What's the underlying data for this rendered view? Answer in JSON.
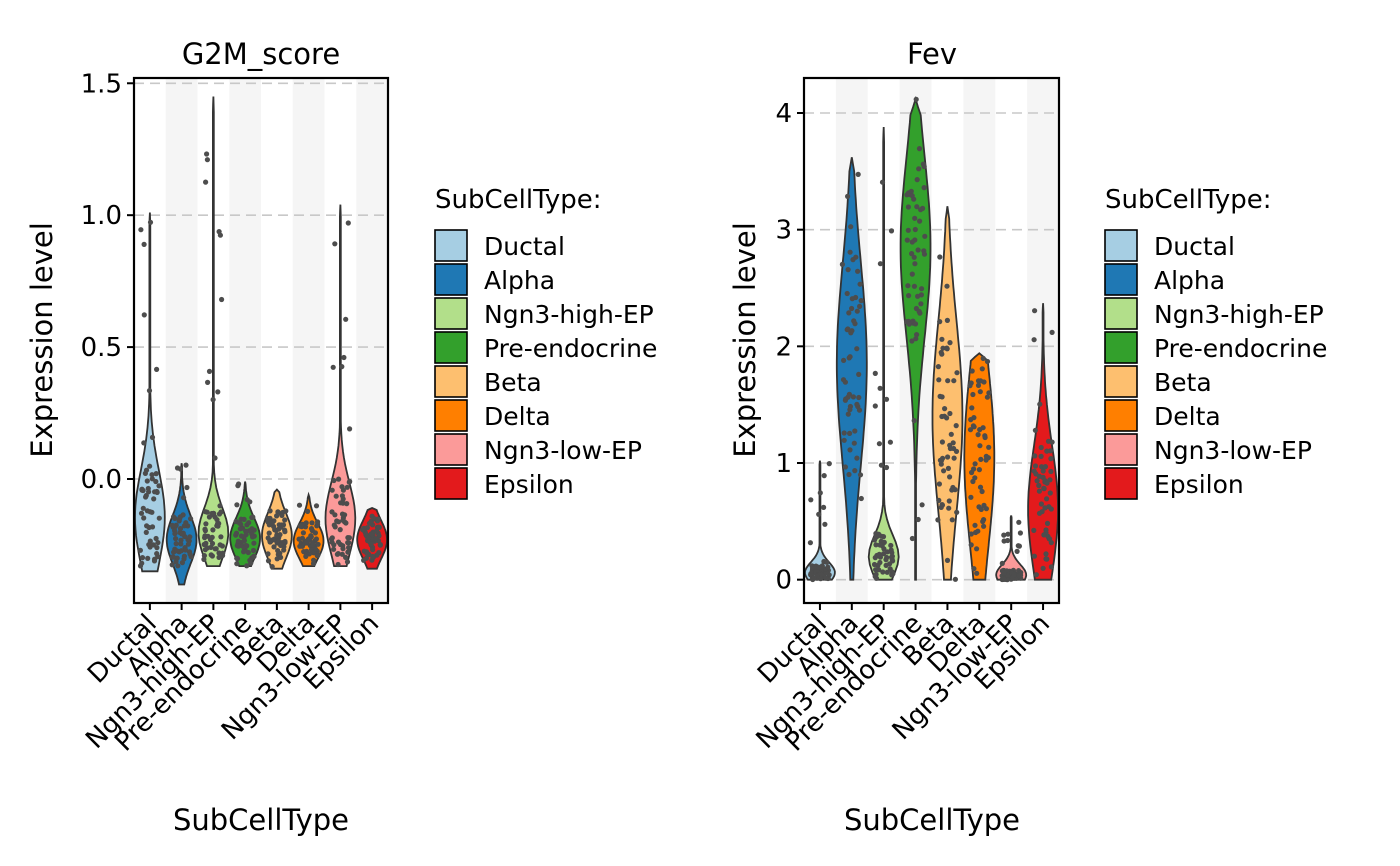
{
  "legend": {
    "title": "SubCellType:",
    "entries": [
      "Ductal",
      "Alpha",
      "Ngn3-high-EP",
      "Pre-endocrine",
      "Beta",
      "Delta",
      "Ngn3-low-EP",
      "Epsilon"
    ]
  },
  "colors": {
    "Ductal": "#a6cee3",
    "Alpha": "#1f78b4",
    "Ngn3-high-EP": "#b2df8a",
    "Pre-endocrine": "#33a02c",
    "Beta": "#fdbf6f",
    "Delta": "#ff7f00",
    "Ngn3-low-EP": "#fb9a99",
    "Epsilon": "#e31a1c",
    "stripe": "#f5f5f5",
    "grid": "#c8c8c8",
    "point": "#4d4d4d"
  },
  "chart_data": [
    {
      "type": "violin",
      "title": "G2M_score",
      "xlabel": "SubCellType",
      "ylabel": "Expression level",
      "categories": [
        "Ductal",
        "Alpha",
        "Ngn3-high-EP",
        "Pre-endocrine",
        "Beta",
        "Delta",
        "Ngn3-low-EP",
        "Epsilon"
      ],
      "ylim": [
        -0.47,
        1.52
      ],
      "yticks": [
        -0.0,
        0.5,
        1.0,
        1.5
      ],
      "ytick_labels": [
        "0.0",
        "0.5",
        "1.0",
        "1.5"
      ],
      "grid": "horizontal dashed",
      "legend": "right",
      "violins": [
        {
          "category": "Ductal",
          "min": -0.35,
          "max": 1.01,
          "median": -0.2,
          "bulk_low": -0.34,
          "bulk_high": 0.05
        },
        {
          "category": "Alpha",
          "min": -0.4,
          "max": 0.06,
          "median": -0.23,
          "bulk_low": -0.33,
          "bulk_high": -0.13
        },
        {
          "category": "Ngn3-high-EP",
          "min": -0.33,
          "max": 1.45,
          "median": -0.22,
          "bulk_low": -0.31,
          "bulk_high": -0.1
        },
        {
          "category": "Pre-endocrine",
          "min": -0.33,
          "max": -0.01,
          "median": -0.25,
          "bulk_low": -0.31,
          "bulk_high": -0.14
        },
        {
          "category": "Beta",
          "min": -0.34,
          "max": -0.04,
          "median": -0.22,
          "bulk_low": -0.31,
          "bulk_high": -0.12
        },
        {
          "category": "Delta",
          "min": -0.33,
          "max": -0.06,
          "median": -0.26,
          "bulk_low": -0.31,
          "bulk_high": -0.16
        },
        {
          "category": "Ngn3-low-EP",
          "min": -0.33,
          "max": 1.04,
          "median": -0.2,
          "bulk_low": -0.3,
          "bulk_high": 0.0
        },
        {
          "category": "Epsilon",
          "min": -0.34,
          "max": -0.11,
          "median": -0.24,
          "bulk_low": -0.31,
          "bulk_high": -0.15
        }
      ]
    },
    {
      "type": "violin",
      "title": "Fev",
      "xlabel": "SubCellType",
      "ylabel": "Expression level",
      "categories": [
        "Ductal",
        "Alpha",
        "Ngn3-high-EP",
        "Pre-endocrine",
        "Beta",
        "Delta",
        "Ngn3-low-EP",
        "Epsilon"
      ],
      "ylim": [
        -0.2,
        4.3
      ],
      "yticks": [
        0,
        1,
        2,
        3,
        4
      ],
      "ytick_labels": [
        "0",
        "1",
        "2",
        "3",
        "4"
      ],
      "grid": "horizontal dashed",
      "legend": "right",
      "violins": [
        {
          "category": "Ductal",
          "min": 0,
          "max": 1.02,
          "median": 0.0,
          "bulk_low": 0,
          "bulk_high": 0.12
        },
        {
          "category": "Alpha",
          "min": 0,
          "max": 3.62,
          "median": 1.6,
          "bulk_low": 0.9,
          "bulk_high": 2.8
        },
        {
          "category": "Ngn3-high-EP",
          "min": 0,
          "max": 3.88,
          "median": 0.05,
          "bulk_low": 0,
          "bulk_high": 0.4
        },
        {
          "category": "Pre-endocrine",
          "min": 0,
          "max": 4.12,
          "median": 2.8,
          "bulk_low": 2.0,
          "bulk_high": 3.7
        },
        {
          "category": "Beta",
          "min": 0,
          "max": 3.2,
          "median": 1.4,
          "bulk_low": 0.5,
          "bulk_high": 2.3
        },
        {
          "category": "Delta",
          "min": 0,
          "max": 1.94,
          "median": 1.0,
          "bulk_low": 0.2,
          "bulk_high": 1.9
        },
        {
          "category": "Ngn3-low-EP",
          "min": 0,
          "max": 0.55,
          "median": 0.0,
          "bulk_low": 0,
          "bulk_high": 0.08
        },
        {
          "category": "Epsilon",
          "min": 0,
          "max": 2.37,
          "median": 0.6,
          "bulk_low": 0,
          "bulk_high": 1.2
        }
      ]
    }
  ]
}
